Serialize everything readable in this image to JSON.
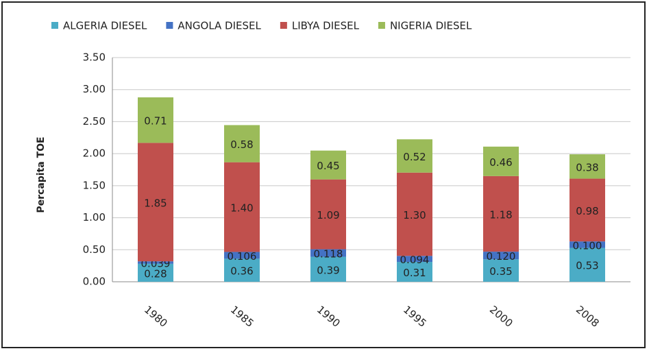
{
  "chart_data": {
    "type": "stacked-bar",
    "y_label": "Percapita TOE",
    "categories": [
      "1980",
      "1985",
      "1990",
      "1995",
      "2000",
      "2008"
    ],
    "series": [
      {
        "name": "ALGERIA DIESEL",
        "color": "#4bacc6",
        "values": [
          0.28,
          0.36,
          0.39,
          0.31,
          0.35,
          0.53
        ],
        "value_labels": [
          "0.28",
          "0.36",
          "0.39",
          "0.31",
          "0.35",
          "0.53"
        ]
      },
      {
        "name": "ANGOLA DIESEL",
        "color": "#4472c4",
        "values": [
          0.039,
          0.106,
          0.118,
          0.094,
          0.12,
          0.1
        ],
        "value_labels": [
          "0.039",
          "0.106",
          "0.118",
          "0.094",
          "0.120",
          "0.100"
        ]
      },
      {
        "name": "LIBYA DIESEL",
        "color": "#c0504d",
        "values": [
          1.85,
          1.4,
          1.09,
          1.3,
          1.18,
          0.98
        ],
        "value_labels": [
          "1.85",
          "1.40",
          "1.09",
          "1.30",
          "1.18",
          "0.98"
        ]
      },
      {
        "name": "NIGERIA DIESEL",
        "color": "#9bbb59",
        "values": [
          0.71,
          0.58,
          0.45,
          0.52,
          0.46,
          0.38
        ],
        "value_labels": [
          "0.71",
          "0.58",
          "0.45",
          "0.52",
          "0.46",
          "0.38"
        ]
      }
    ],
    "ylim": [
      0,
      3.5
    ],
    "yticks": [
      {
        "value": 0,
        "label": "0.00"
      },
      {
        "value": 0.5,
        "label": "0.50"
      },
      {
        "value": 1,
        "label": "1.00"
      },
      {
        "value": 1.5,
        "label": "1.50"
      },
      {
        "value": 2,
        "label": "2.00"
      },
      {
        "value": 2.5,
        "label": "2.50"
      },
      {
        "value": 3,
        "label": "3.00"
      },
      {
        "value": 3.5,
        "label": "3.50"
      }
    ],
    "grid": true,
    "legend": "top"
  }
}
